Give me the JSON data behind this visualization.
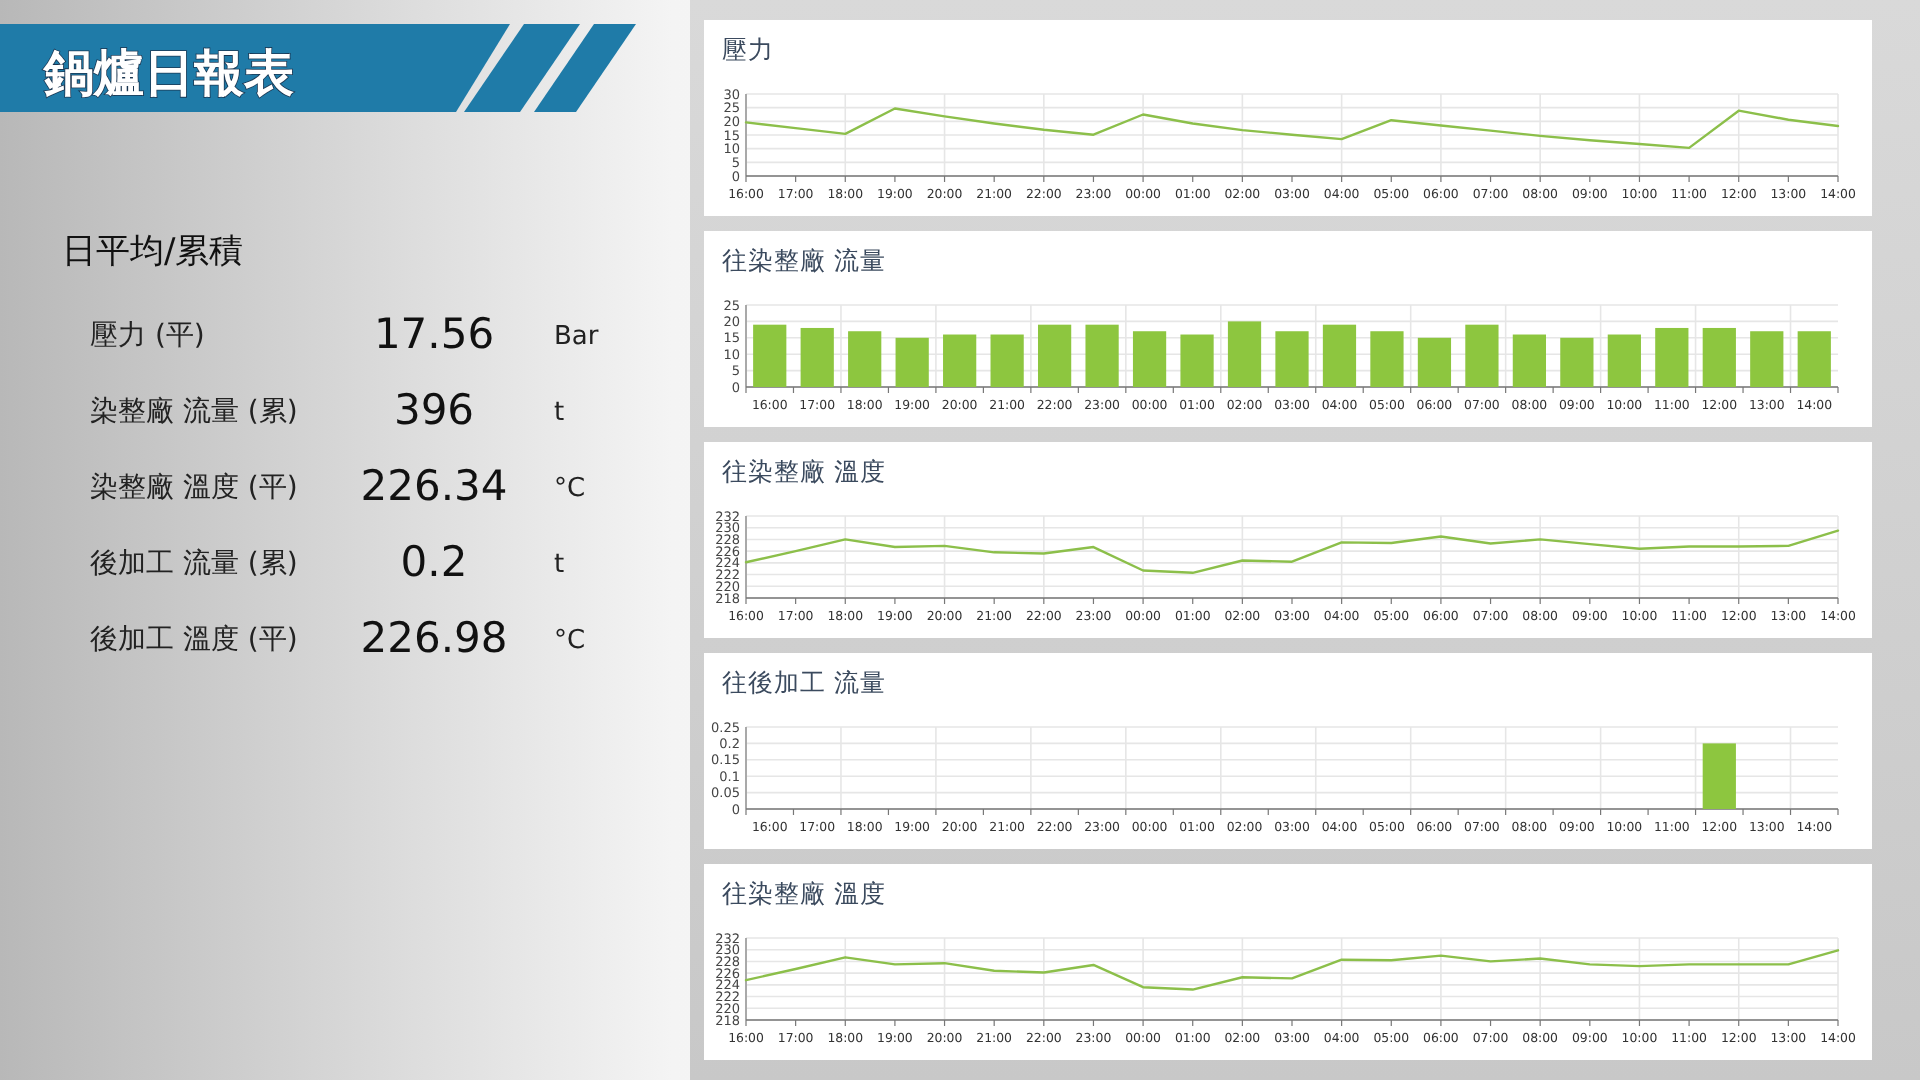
{
  "chart_data": [
    {
      "type": "other",
      "title": "鍋爐日報表",
      "subtitle": "日平均/累積",
      "categories": [
        "壓力 (平)",
        "染整廠 流量 (累)",
        "染整廠 溫度 (平)",
        "後加工 流量 (累)",
        "後加工 溫度 (平)"
      ],
      "values": [
        17.56,
        396,
        226.34,
        0.2,
        226.98
      ],
      "data_labels": true,
      "annotations": [
        "Bar",
        "t",
        "°C",
        "t",
        "°C"
      ]
    },
    {
      "type": "line",
      "title": "壓力",
      "categories": [
        "16:00",
        "17:00",
        "18:00",
        "19:00",
        "20:00",
        "21:00",
        "22:00",
        "23:00",
        "00:00",
        "01:00",
        "02:00",
        "03:00",
        "04:00",
        "05:00",
        "06:00",
        "07:00",
        "08:00",
        "09:00",
        "10:00",
        "11:00",
        "12:00",
        "13:00",
        "14:00"
      ],
      "color": "#8cbf4a",
      "values": [
        19.6,
        17.5,
        15.4,
        24.7,
        21.8,
        19.2,
        16.9,
        15.1,
        22.5,
        19.2,
        16.8,
        15.1,
        13.5,
        20.4,
        18.5,
        16.6,
        14.7,
        13.1,
        11.7,
        10.3,
        23.9,
        20.6,
        18.3
      ],
      "ylim": [
        0,
        30
      ],
      "yticks": [
        0,
        5,
        10,
        15,
        20,
        25,
        30
      ],
      "grid": true
    },
    {
      "type": "bar",
      "title": "往染整廠 流量",
      "categories": [
        "16:00",
        "17:00",
        "18:00",
        "19:00",
        "20:00",
        "21:00",
        "22:00",
        "23:00",
        "00:00",
        "01:00",
        "02:00",
        "03:00",
        "04:00",
        "05:00",
        "06:00",
        "07:00",
        "08:00",
        "09:00",
        "10:00",
        "11:00",
        "12:00",
        "13:00",
        "14:00"
      ],
      "color": "#8dc63f",
      "values": [
        19,
        18,
        17,
        15,
        16,
        16,
        19,
        19,
        17,
        16,
        20,
        17,
        19,
        17,
        15,
        19,
        16,
        15,
        16,
        18,
        18,
        17,
        17
      ],
      "ylim": [
        0,
        25
      ],
      "yticks": [
        0,
        5,
        10,
        15,
        20,
        25
      ],
      "grid": true
    },
    {
      "type": "line",
      "title": "往染整廠 溫度",
      "categories": [
        "16:00",
        "17:00",
        "18:00",
        "19:00",
        "20:00",
        "21:00",
        "22:00",
        "23:00",
        "00:00",
        "01:00",
        "02:00",
        "03:00",
        "04:00",
        "05:00",
        "06:00",
        "07:00",
        "08:00",
        "09:00",
        "10:00",
        "11:00",
        "12:00",
        "13:00",
        "14:00"
      ],
      "color": "#8cbf4a",
      "values": [
        224.1,
        226.0,
        228.0,
        226.7,
        226.9,
        225.8,
        225.6,
        226.7,
        222.7,
        222.3,
        224.4,
        224.2,
        227.5,
        227.4,
        228.5,
        227.3,
        228.0,
        227.2,
        226.4,
        226.8,
        226.8,
        226.9,
        229.5
      ],
      "ylim": [
        218,
        232
      ],
      "yticks": [
        218,
        220,
        222,
        224,
        226,
        228,
        230,
        232
      ],
      "grid": true
    },
    {
      "type": "bar",
      "title": "往後加工 流量",
      "categories": [
        "16:00",
        "17:00",
        "18:00",
        "19:00",
        "20:00",
        "21:00",
        "22:00",
        "23:00",
        "00:00",
        "01:00",
        "02:00",
        "03:00",
        "04:00",
        "05:00",
        "06:00",
        "07:00",
        "08:00",
        "09:00",
        "10:00",
        "11:00",
        "12:00",
        "13:00",
        "14:00"
      ],
      "color": "#8dc63f",
      "values": [
        0,
        0,
        0,
        0,
        0,
        0,
        0,
        0,
        0,
        0,
        0,
        0,
        0,
        0,
        0,
        0,
        0,
        0,
        0,
        0,
        0.2,
        0,
        0
      ],
      "ylim": [
        0,
        0.25
      ],
      "yticks": [
        0,
        0.05,
        0.1,
        0.15,
        0.2,
        0.25
      ],
      "grid": true
    },
    {
      "type": "line",
      "title": "往染整廠 溫度",
      "categories": [
        "16:00",
        "17:00",
        "18:00",
        "19:00",
        "20:00",
        "21:00",
        "22:00",
        "23:00",
        "00:00",
        "01:00",
        "02:00",
        "03:00",
        "04:00",
        "05:00",
        "06:00",
        "07:00",
        "08:00",
        "09:00",
        "10:00",
        "11:00",
        "12:00",
        "13:00",
        "14:00"
      ],
      "color": "#8cbf4a",
      "values": [
        224.8,
        226.7,
        228.7,
        227.5,
        227.7,
        226.4,
        226.1,
        227.4,
        223.6,
        223.2,
        225.3,
        225.1,
        228.3,
        228.2,
        229.0,
        228.0,
        228.5,
        227.5,
        227.2,
        227.5,
        227.5,
        227.5,
        229.9
      ],
      "ylim": [
        218,
        232
      ],
      "yticks": [
        218,
        220,
        222,
        224,
        226,
        228,
        230,
        232
      ],
      "grid": true
    }
  ]
}
